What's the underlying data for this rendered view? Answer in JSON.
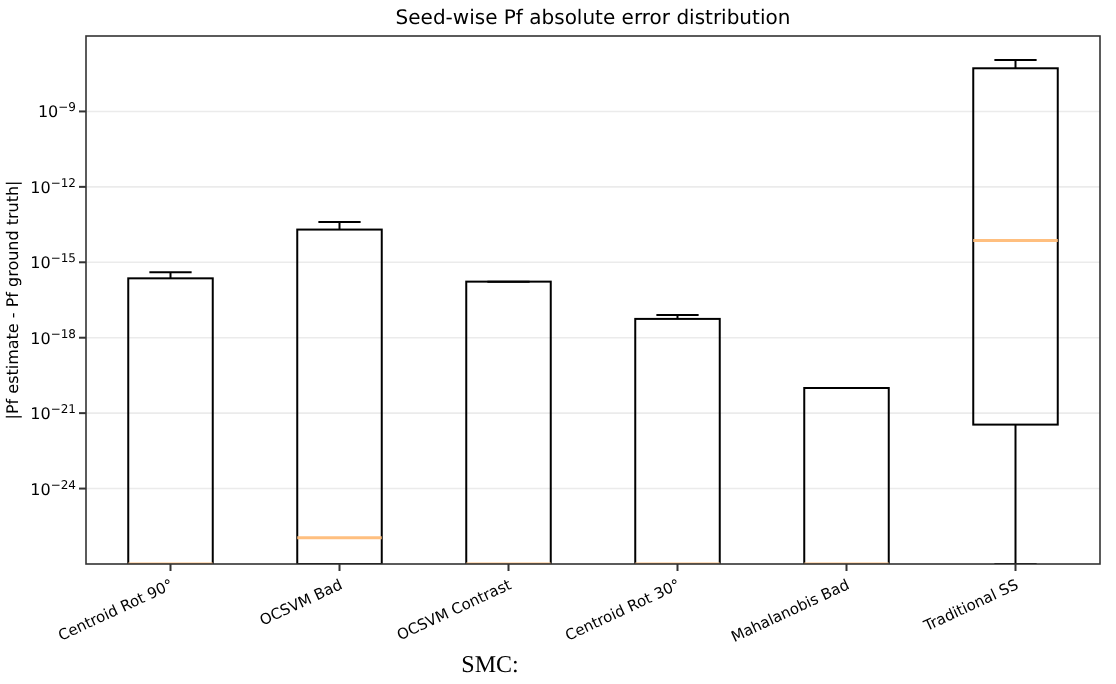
{
  "chart_data": {
    "type": "box",
    "title": "Seed-wise Pf absolute error distribution",
    "ylabel": "|Pf estimate - Pf ground truth|",
    "categories": [
      "Centroid Rot 90°",
      "OCSVM Bad",
      "OCSVM Contrast",
      "Centroid Rot 30°",
      "Mahalanobis Bad",
      "Traditional SS"
    ],
    "boxes": [
      {
        "low": 1e-27,
        "q1": 1e-27,
        "median": 1e-27,
        "q3": 2.3e-16,
        "high": 4e-16
      },
      {
        "low": 1e-27,
        "q1": 1e-27,
        "median": 1.1e-26,
        "q3": 2e-14,
        "high": 4e-14
      },
      {
        "low": 1e-27,
        "q1": 1e-27,
        "median": 1e-27,
        "q3": 1.7e-16,
        "high": 1.7e-16
      },
      {
        "low": 1e-27,
        "q1": 1e-27,
        "median": 1e-27,
        "q3": 5.6e-18,
        "high": 8e-18
      },
      {
        "low": 1e-27,
        "q1": 1e-27,
        "median": 1e-27,
        "q3": 1e-20,
        "high": 1e-20
      },
      {
        "low": 1e-27,
        "q1": 3.5e-22,
        "median": 7.4e-15,
        "q3": 5.2e-08,
        "high": 1.1e-07
      }
    ],
    "log": "y",
    "ylim": [
      1e-27,
      1e-06
    ],
    "yticks": [
      {
        "value": 1e-24,
        "label": "10$^{−24}$"
      },
      {
        "value": 1e-21,
        "label": "10$^{−21}$"
      },
      {
        "value": 1e-18,
        "label": "10$^{−18}$"
      },
      {
        "value": 1e-15,
        "label": "10$^{−15}$"
      },
      {
        "value": 1e-12,
        "label": "10$^{−12}$"
      },
      {
        "value": 1e-09,
        "label": "10$^{−9}$"
      }
    ],
    "grid": "y",
    "annotations": [
      "SMC:"
    ]
  }
}
